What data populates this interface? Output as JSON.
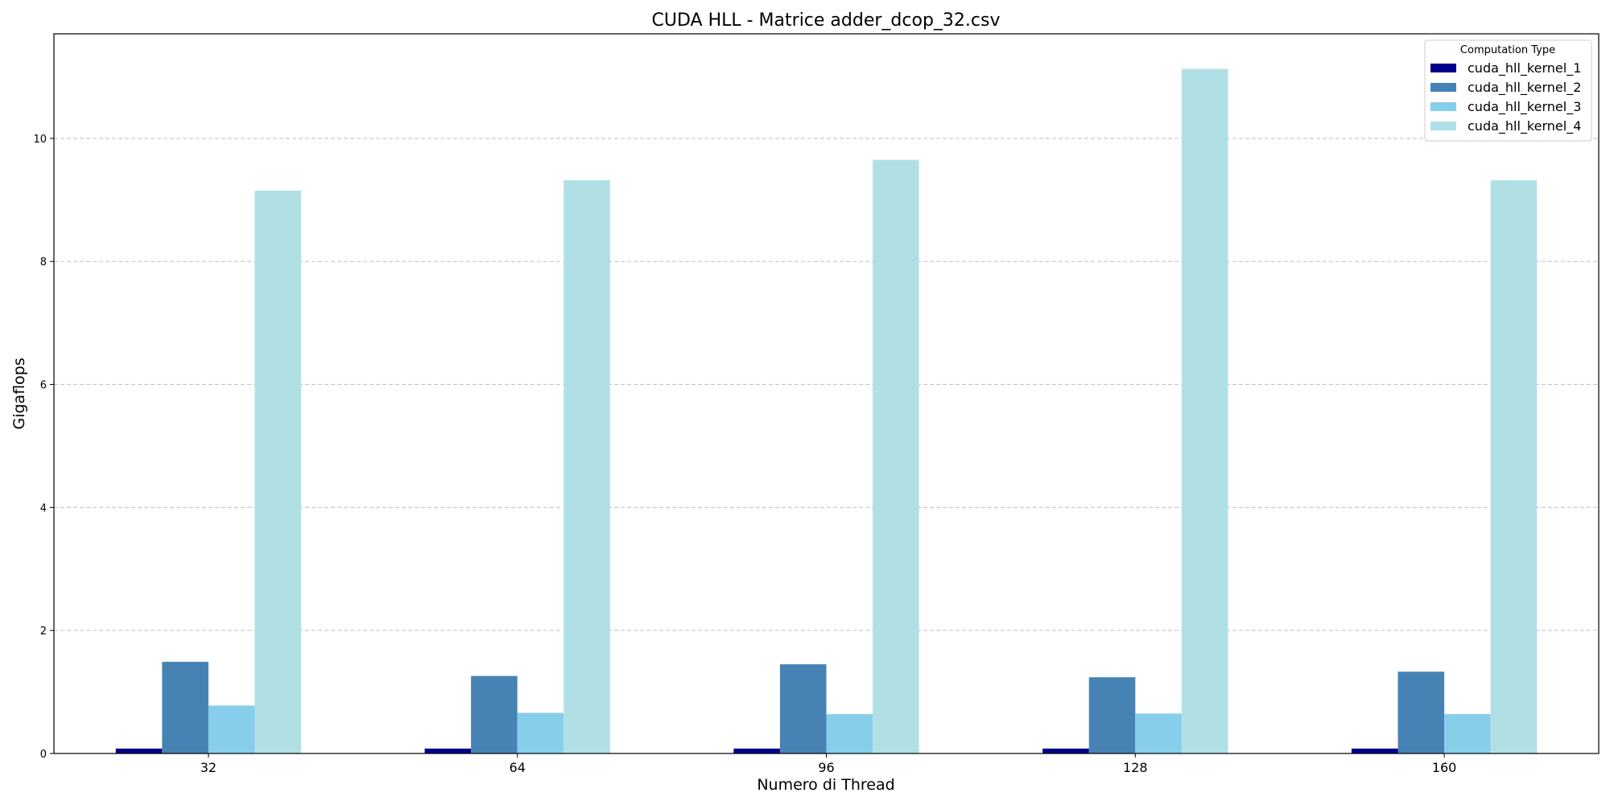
{
  "chart_data": {
    "type": "bar",
    "title": "CUDA HLL - Matrice adder_dcop_32.csv",
    "xlabel": "Numero di Thread",
    "ylabel": "Gigaflops",
    "categories": [
      "32",
      "64",
      "96",
      "128",
      "160"
    ],
    "ylim": [
      0,
      11.7
    ],
    "yticks": [
      0,
      2,
      4,
      6,
      8,
      10
    ],
    "grid": "y-dashed",
    "legend": {
      "title": "Computation Type",
      "placement": "top-right"
    },
    "series": [
      {
        "name": "cuda_hll_kernel_1",
        "color": "#00008b",
        "values": [
          0.08,
          0.08,
          0.08,
          0.08,
          0.08
        ]
      },
      {
        "name": "cuda_hll_kernel_2",
        "color": "#4682b4",
        "values": [
          1.49,
          1.26,
          1.45,
          1.24,
          1.33
        ]
      },
      {
        "name": "cuda_hll_kernel_3",
        "color": "#87ceeb",
        "values": [
          0.78,
          0.66,
          0.64,
          0.65,
          0.64
        ]
      },
      {
        "name": "cuda_hll_kernel_4",
        "color": "#b0e0e6",
        "values": [
          9.15,
          9.32,
          9.65,
          11.13,
          9.32
        ]
      }
    ]
  }
}
